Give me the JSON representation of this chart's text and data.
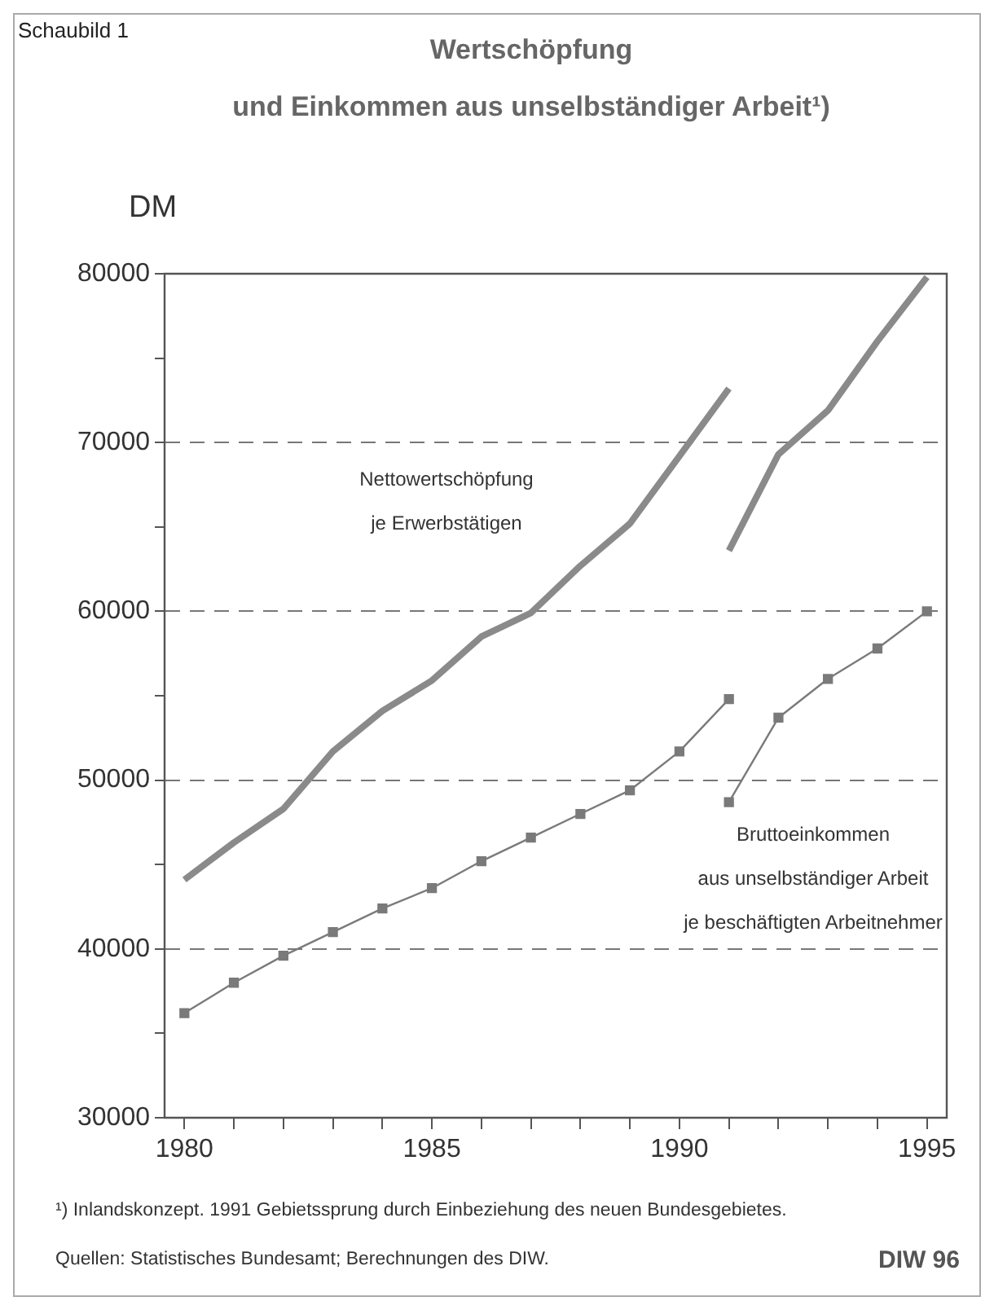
{
  "chart_data": {
    "type": "line",
    "title": "Wertschöpfung",
    "subtitle": "und Einkommen aus unselbständiger Arbeit¹)",
    "ylabel": "DM",
    "series": [
      {
        "name": "Nettowertschöpfung\nje Erwerbstätigen",
        "color": "#8a8a8a",
        "marker": "none",
        "line_style": "solid",
        "x": [
          1980,
          1981,
          1982,
          1983,
          1984,
          1985,
          1986,
          1987,
          1988,
          1989,
          1990,
          1991
        ],
        "values": [
          44100,
          46300,
          48300,
          51700,
          54100,
          55900,
          58500,
          59900,
          62700,
          65200,
          69200,
          73200
        ]
      },
      {
        "color": "#8a8a8a",
        "marker": "none",
        "line_style": "solid",
        "x": [
          1991,
          1992,
          1993,
          1994,
          1995
        ],
        "values": [
          63600,
          69300,
          71900,
          76000,
          79800
        ]
      },
      {
        "name": "Bruttoeinkommen\naus unselbständiger Arbeit\nje beschäftigten Arbeitnehmer",
        "color": "#7a7a7a",
        "marker": "square",
        "line_style": "solid",
        "x": [
          1980,
          1981,
          1982,
          1983,
          1984,
          1985,
          1986,
          1987,
          1988,
          1989,
          1990,
          1991
        ],
        "values": [
          36200,
          38000,
          39600,
          41000,
          42400,
          43600,
          45200,
          46600,
          48000,
          49400,
          51700,
          54800
        ]
      },
      {
        "color": "#7a7a7a",
        "marker": "square",
        "line_style": "solid",
        "x": [
          1991,
          1992,
          1993,
          1994,
          1995
        ],
        "values": [
          48700,
          53700,
          56000,
          57800,
          60000
        ]
      }
    ],
    "xlim": [
      1979.6,
      1995.4
    ],
    "xticks": [
      1980,
      {
        "value": 1981,
        "label": null
      },
      {
        "value": 1982,
        "label": null
      },
      {
        "value": 1983,
        "label": null
      },
      {
        "value": 1984,
        "label": null
      },
      1985,
      {
        "value": 1986,
        "label": null
      },
      {
        "value": 1987,
        "label": null
      },
      {
        "value": 1988,
        "label": null
      },
      {
        "value": 1989,
        "label": null
      },
      1990,
      {
        "value": 1991,
        "label": null
      },
      {
        "value": 1992,
        "label": null
      },
      {
        "value": 1993,
        "label": null
      },
      {
        "value": 1994,
        "label": null
      },
      1995
    ],
    "ylim": [
      30000,
      80000
    ],
    "yticks": [
      30000,
      {
        "value": 35000,
        "label": null
      },
      40000,
      {
        "value": 45000,
        "label": null
      },
      50000,
      {
        "value": 55000,
        "label": null
      },
      60000,
      {
        "value": 65000,
        "label": null
      },
      70000,
      {
        "value": 75000,
        "label": null
      },
      80000
    ],
    "grid": "y",
    "legend": false,
    "annotations": [
      "Schaubild 1",
      "¹) Inlandskonzept. 1991 Gebietssprung durch Einbeziehung des neuen Bundesgebietes.",
      "Quellen: Statistisches Bundesamt; Berechnungen des DIW.",
      "DIW 96"
    ]
  }
}
